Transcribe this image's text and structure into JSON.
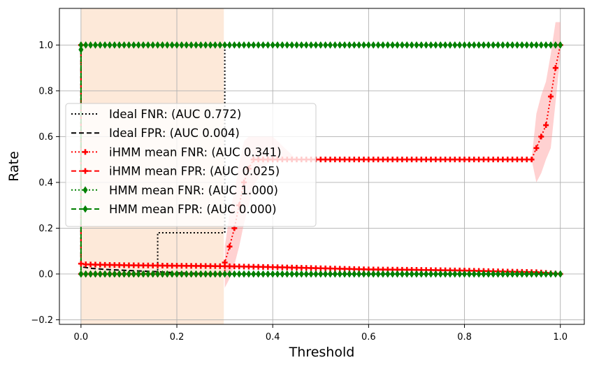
{
  "chart_data": {
    "type": "line",
    "xlabel": "Threshold",
    "ylabel": "Rate",
    "xlim": [
      -0.045,
      1.05
    ],
    "ylim": [
      -0.22,
      1.16
    ],
    "xticks": [
      0.0,
      0.2,
      0.4,
      0.6,
      0.8,
      1.0
    ],
    "xtick_labels": [
      "0.0",
      "0.2",
      "0.4",
      "0.6",
      "0.8",
      "1.0"
    ],
    "yticks": [
      -0.2,
      0.0,
      0.2,
      0.4,
      0.6,
      0.8,
      1.0
    ],
    "ytick_labels": [
      "−0.2",
      "0.0",
      "0.2",
      "0.4",
      "0.6",
      "0.8",
      "1.0"
    ],
    "grid": true,
    "legend_position": "center-left",
    "shaded_region": {
      "x_start": 0.0,
      "x_end": 0.298,
      "color": "#fde9d9"
    },
    "series": [
      {
        "name": "Ideal FNR: (AUC 0.772)",
        "color": "#000000",
        "linestyle": "dotted",
        "marker": "none",
        "x": [
          0.0,
          0.16,
          0.16,
          0.3,
          0.3,
          1.0
        ],
        "y": [
          0.0,
          0.0,
          0.18,
          0.18,
          1.0,
          1.0
        ]
      },
      {
        "name": "Ideal FPR: (AUC 0.004)",
        "color": "#000000",
        "linestyle": "dashed",
        "marker": "none",
        "x": [
          0.0,
          0.0,
          0.005,
          0.02,
          0.05,
          0.1,
          0.16,
          0.2,
          0.3,
          0.5,
          1.0
        ],
        "y": [
          1.0,
          0.04,
          0.03,
          0.025,
          0.02,
          0.015,
          0.01,
          0.005,
          0.0,
          0.0,
          0.0
        ]
      },
      {
        "name": "iHMM mean FNR: (AUC 0.341)",
        "color": "#ff0000",
        "linestyle": "dotted",
        "marker": "plus",
        "x": [
          0.0,
          0.3,
          0.3,
          0.31,
          0.32,
          0.33,
          0.34,
          0.35,
          0.36,
          0.38,
          0.4,
          0.45,
          0.5,
          0.55,
          0.6,
          0.65,
          0.7,
          0.75,
          0.8,
          0.85,
          0.9,
          0.94,
          0.95,
          0.97,
          0.99,
          1.0
        ],
        "y": [
          0.0,
          0.0,
          0.05,
          0.12,
          0.2,
          0.3,
          0.4,
          0.46,
          0.5,
          0.5,
          0.5,
          0.5,
          0.5,
          0.5,
          0.5,
          0.5,
          0.5,
          0.5,
          0.5,
          0.5,
          0.5,
          0.5,
          0.55,
          0.65,
          0.9,
          1.0
        ],
        "band": {
          "x": [
            0.3,
            0.31,
            0.32,
            0.33,
            0.34,
            0.35,
            0.36,
            0.38,
            0.4,
            0.45,
            0.94,
            0.95,
            0.96,
            0.97,
            0.98,
            0.99,
            1.0
          ],
          "lower": [
            -0.06,
            -0.02,
            0.04,
            0.12,
            0.22,
            0.3,
            0.38,
            0.46,
            0.5,
            0.5,
            0.5,
            0.4,
            0.44,
            0.5,
            0.55,
            0.75,
            0.95
          ],
          "upper": [
            0.12,
            0.26,
            0.36,
            0.48,
            0.58,
            0.6,
            0.6,
            0.6,
            0.6,
            0.5,
            0.5,
            0.7,
            0.78,
            0.84,
            0.96,
            1.1,
            1.1
          ]
        }
      },
      {
        "name": "iHMM mean FPR: (AUC 0.025)",
        "color": "#ff0000",
        "linestyle": "dashed",
        "marker": "plus",
        "x": [
          0.0,
          0.0,
          0.01,
          0.05,
          0.1,
          0.2,
          0.3,
          0.4,
          0.5,
          0.6,
          0.7,
          0.8,
          0.9,
          0.95,
          1.0
        ],
        "y": [
          1.0,
          0.045,
          0.042,
          0.04,
          0.038,
          0.036,
          0.034,
          0.03,
          0.025,
          0.02,
          0.018,
          0.015,
          0.01,
          0.008,
          0.0
        ]
      },
      {
        "name": "HMM mean FNR: (AUC 1.000)",
        "color": "#008000",
        "linestyle": "dotted",
        "marker": "diamond",
        "x": [
          0.0,
          0.0,
          1.0
        ],
        "y": [
          0.0,
          1.0,
          1.0
        ]
      },
      {
        "name": "HMM mean FPR: (AUC 0.000)",
        "color": "#008000",
        "linestyle": "dashed",
        "marker": "diamond",
        "x": [
          0.0,
          0.0,
          1.0
        ],
        "y": [
          0.98,
          0.0,
          0.0
        ]
      }
    ]
  }
}
